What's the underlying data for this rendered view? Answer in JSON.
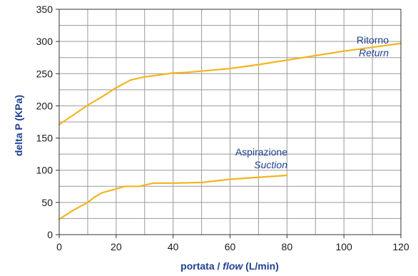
{
  "chart_data": {
    "type": "line",
    "xlabel": {
      "part1": "portata / ",
      "part2": "flow",
      "part3": " (L/min)"
    },
    "ylabel": "delta P (KPa)",
    "xlim": [
      0,
      120
    ],
    "ylim": [
      0,
      350
    ],
    "xticks": [
      "0",
      "20",
      "40",
      "60",
      "80",
      "100",
      "120"
    ],
    "yticks": [
      "0",
      "50",
      "100",
      "150",
      "200",
      "250",
      "300",
      "350"
    ],
    "grid": true,
    "line_color": "#f2b51e",
    "grid_color": "#9a9a9a",
    "series": [
      {
        "name": "Ritorno",
        "name_en": "Return",
        "x": [
          0,
          5,
          10,
          15,
          20,
          25,
          28,
          30,
          35,
          40,
          45,
          50,
          60,
          70,
          80,
          90,
          100,
          110,
          120
        ],
        "y": [
          171,
          186,
          201,
          214,
          228,
          240,
          243,
          245,
          248,
          251,
          252,
          254,
          258,
          264,
          271,
          278,
          285,
          291,
          297
        ]
      },
      {
        "name": "Aspirazione",
        "name_en": "Suction",
        "x": [
          0,
          5,
          10,
          12,
          15,
          20,
          23,
          28,
          33,
          40,
          50,
          60,
          70,
          80
        ],
        "y": [
          24,
          38,
          50,
          57,
          65,
          71,
          75,
          75,
          80,
          80,
          81,
          86,
          89,
          92
        ]
      }
    ]
  }
}
